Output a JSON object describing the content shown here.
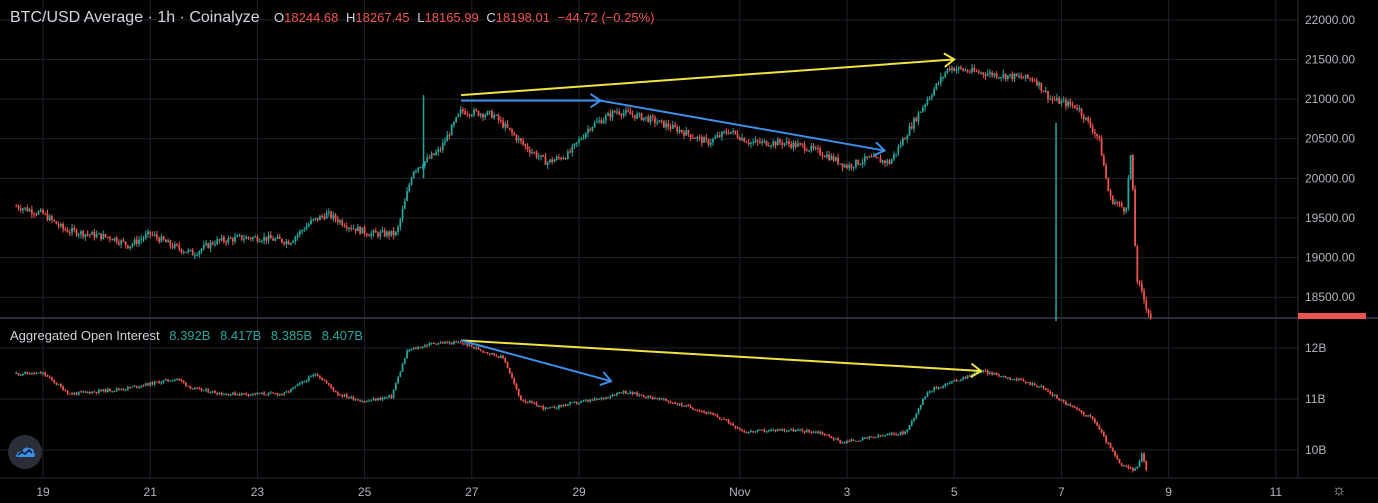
{
  "header": {
    "title": "BTC/USD Average · 1h · Coinalyze",
    "open_label": "O",
    "open": "18244.68",
    "high_label": "H",
    "high": "18267.45",
    "low_label": "L",
    "low": "18165.99",
    "close_label": "C",
    "close": "18198.01",
    "change": "−44.72 (−0.25%)"
  },
  "oi_header": {
    "title": "Aggregated Open Interest",
    "v1": "8.392B",
    "v2": "8.417B",
    "v3": "8.385B",
    "v4": "8.407B"
  },
  "chart_data": [
    {
      "type": "candlestick",
      "title": "BTC/USD Average · 1h · Coinalyze",
      "x_tick_labels": [
        "19",
        "21",
        "23",
        "25",
        "27",
        "29",
        "Nov",
        "3",
        "5",
        "7",
        "9",
        "11"
      ],
      "y_tick_labels": [
        "22000.00",
        "21500.00",
        "21000.00",
        "20500.00",
        "20000.00",
        "19500.00",
        "19000.00",
        "18500.00"
      ],
      "ylim": [
        18250,
        22250
      ],
      "x_day_range": [
        18.5,
        11.7
      ],
      "series": [
        {
          "points": [
            {
              "x": 18.5,
              "y": 19650
            },
            {
              "x": 19.0,
              "y": 19550
            },
            {
              "x": 19.4,
              "y": 19350
            },
            {
              "x": 19.8,
              "y": 19300
            },
            {
              "x": 20.3,
              "y": 19250
            },
            {
              "x": 20.6,
              "y": 19150
            },
            {
              "x": 21.0,
              "y": 19300
            },
            {
              "x": 21.4,
              "y": 19150
            },
            {
              "x": 21.8,
              "y": 19050
            },
            {
              "x": 22.2,
              "y": 19200
            },
            {
              "x": 22.7,
              "y": 19250
            },
            {
              "x": 23.1,
              "y": 19250
            },
            {
              "x": 23.6,
              "y": 19200
            },
            {
              "x": 24.0,
              "y": 19450
            },
            {
              "x": 24.3,
              "y": 19550
            },
            {
              "x": 24.7,
              "y": 19400
            },
            {
              "x": 25.1,
              "y": 19300
            },
            {
              "x": 25.6,
              "y": 19300
            },
            {
              "x": 25.9,
              "y": 20100
            },
            {
              "x": 26.4,
              "y": 20350
            },
            {
              "x": 26.8,
              "y": 20850
            },
            {
              "x": 27.4,
              "y": 20800
            },
            {
              "x": 28.0,
              "y": 20400
            },
            {
              "x": 28.4,
              "y": 20200
            },
            {
              "x": 28.8,
              "y": 20300
            },
            {
              "x": 29.2,
              "y": 20650
            },
            {
              "x": 29.7,
              "y": 20850
            },
            {
              "x": 30.3,
              "y": 20750
            },
            {
              "x": 30.9,
              "y": 20600
            },
            {
              "x": 31.4,
              "y": 20450
            },
            {
              "x": 31.8,
              "y": 20600
            },
            {
              "x": 32.2,
              "y": 20450
            },
            {
              "x": 32.8,
              "y": 20450
            },
            {
              "x": 33.2,
              "y": 20400
            },
            {
              "x": 33.6,
              "y": 20300
            },
            {
              "x": 34.0,
              "y": 20150
            },
            {
              "x": 34.4,
              "y": 20250
            },
            {
              "x": 34.8,
              "y": 20200
            },
            {
              "x": 35.1,
              "y": 20550
            },
            {
              "x": 35.5,
              "y": 21000
            },
            {
              "x": 35.9,
              "y": 21400
            },
            {
              "x": 36.3,
              "y": 21350
            },
            {
              "x": 36.9,
              "y": 21300
            },
            {
              "x": 37.5,
              "y": 21250
            },
            {
              "x": 37.8,
              "y": 21000
            },
            {
              "x": 38.3,
              "y": 20900
            },
            {
              "x": 38.7,
              "y": 20500
            },
            {
              "x": 38.9,
              "y": 19750
            },
            {
              "x": 39.2,
              "y": 19600
            },
            {
              "x": 39.3,
              "y": 20350
            },
            {
              "x": 39.4,
              "y": 18750
            },
            {
              "x": 39.6,
              "y": 18350
            },
            {
              "x": 39.7,
              "y": 18200
            }
          ],
          "spikes": [
            {
              "x": 26.1,
              "low": 20000,
              "high": 21050
            },
            {
              "x": 37.9,
              "low": 18200,
              "high": 20700
            }
          ]
        }
      ],
      "annotations": [
        {
          "type": "yellow-arrow",
          "from": {
            "x": 26.8,
            "y": 21050
          },
          "to": {
            "x": 36.0,
            "y": 21500
          }
        },
        {
          "type": "blue-arrow",
          "from": {
            "x": 26.8,
            "y": 20980
          },
          "to": {
            "x": 29.4,
            "y": 20980
          }
        },
        {
          "type": "blue-arrow",
          "from": {
            "x": 29.4,
            "y": 20980
          },
          "to": {
            "x": 34.7,
            "y": 20350
          }
        }
      ]
    },
    {
      "type": "candlestick",
      "title": "Aggregated Open Interest",
      "y_tick_labels": [
        "12B",
        "11B",
        "10B"
      ],
      "ylim": [
        9.45,
        12.55
      ],
      "series": [
        {
          "points": [
            {
              "x": 18.5,
              "y": 11.5
            },
            {
              "x": 19.0,
              "y": 11.5
            },
            {
              "x": 19.5,
              "y": 11.1
            },
            {
              "x": 20.0,
              "y": 11.15
            },
            {
              "x": 20.5,
              "y": 11.2
            },
            {
              "x": 21.0,
              "y": 11.3
            },
            {
              "x": 21.5,
              "y": 11.4
            },
            {
              "x": 21.8,
              "y": 11.2
            },
            {
              "x": 22.4,
              "y": 11.1
            },
            {
              "x": 23.0,
              "y": 11.1
            },
            {
              "x": 23.5,
              "y": 11.1
            },
            {
              "x": 24.1,
              "y": 11.5
            },
            {
              "x": 24.5,
              "y": 11.1
            },
            {
              "x": 25.0,
              "y": 10.95
            },
            {
              "x": 25.5,
              "y": 11.05
            },
            {
              "x": 25.8,
              "y": 11.95
            },
            {
              "x": 26.3,
              "y": 12.1
            },
            {
              "x": 26.8,
              "y": 12.1
            },
            {
              "x": 27.6,
              "y": 11.8
            },
            {
              "x": 27.9,
              "y": 11.0
            },
            {
              "x": 28.4,
              "y": 10.8
            },
            {
              "x": 28.8,
              "y": 10.9
            },
            {
              "x": 29.4,
              "y": 11.0
            },
            {
              "x": 29.8,
              "y": 11.15
            },
            {
              "x": 30.5,
              "y": 11.0
            },
            {
              "x": 31.2,
              "y": 10.8
            },
            {
              "x": 31.7,
              "y": 10.6
            },
            {
              "x": 32.1,
              "y": 10.35
            },
            {
              "x": 32.8,
              "y": 10.4
            },
            {
              "x": 33.5,
              "y": 10.35
            },
            {
              "x": 33.9,
              "y": 10.15
            },
            {
              "x": 34.5,
              "y": 10.25
            },
            {
              "x": 35.1,
              "y": 10.35
            },
            {
              "x": 35.5,
              "y": 11.15
            },
            {
              "x": 36.0,
              "y": 11.35
            },
            {
              "x": 36.5,
              "y": 11.55
            },
            {
              "x": 37.1,
              "y": 11.4
            },
            {
              "x": 37.6,
              "y": 11.25
            },
            {
              "x": 38.1,
              "y": 10.9
            },
            {
              "x": 38.6,
              "y": 10.6
            },
            {
              "x": 39.1,
              "y": 9.7
            },
            {
              "x": 39.4,
              "y": 9.6
            },
            {
              "x": 39.5,
              "y": 9.95
            },
            {
              "x": 39.6,
              "y": 9.55
            }
          ]
        }
      ],
      "annotations": [
        {
          "type": "yellow-arrow",
          "from": {
            "x": 26.8,
            "y": 12.15
          },
          "to": {
            "x": 36.5,
            "y": 11.55
          }
        },
        {
          "type": "blue-arrow",
          "from": {
            "x": 26.8,
            "y": 12.15
          },
          "to": {
            "x": 29.6,
            "y": 11.35
          }
        }
      ]
    }
  ],
  "colors": {
    "up": "#26a69a",
    "down": "#ef5350",
    "background": "#000000",
    "grid": "#1e222d",
    "text": "#b2b5be",
    "yellow": "#f0e442",
    "blue": "#3d8ee8",
    "last_price": "#ef5350"
  },
  "icons": {
    "logo": "coinalyze-logo-icon",
    "settings": "gear-icon"
  }
}
